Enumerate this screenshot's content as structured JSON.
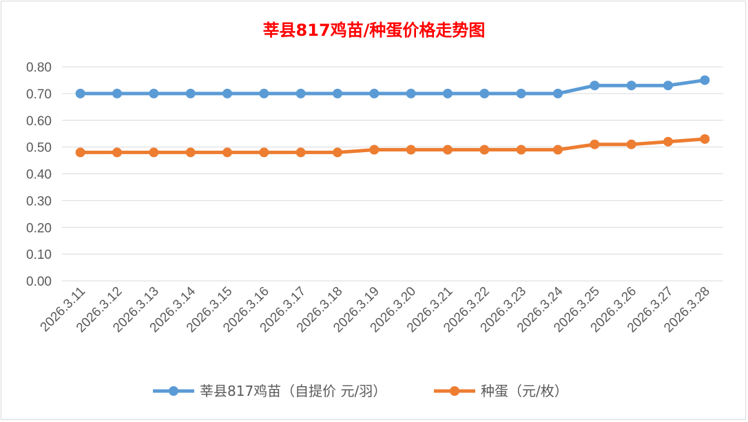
{
  "chart_data": {
    "type": "line",
    "title": "莘县817鸡苗/种蛋价格走势图",
    "xlabel": "",
    "ylabel": "",
    "ylim": [
      0,
      0.8
    ],
    "yticks": [
      "0.00",
      "0.10",
      "0.20",
      "0.30",
      "0.40",
      "0.50",
      "0.60",
      "0.70",
      "0.80"
    ],
    "grid": true,
    "legend_position": "bottom",
    "categories": [
      "2026.3.11",
      "2026.3.12",
      "2026.3.13",
      "2026.3.14",
      "2026.3.15",
      "2026.3.16",
      "2026.3.17",
      "2026.3.18",
      "2026.3.19",
      "2026.3.20",
      "2026.3.21",
      "2026.3.22",
      "2026.3.23",
      "2026.3.24",
      "2026.3.25",
      "2026.3.26",
      "2026.3.27",
      "2026.3.28"
    ],
    "series": [
      {
        "name": "莘县817鸡苗（自提价 元/羽）",
        "color": "#5b9bd5",
        "values": [
          0.7,
          0.7,
          0.7,
          0.7,
          0.7,
          0.7,
          0.7,
          0.7,
          0.7,
          0.7,
          0.7,
          0.7,
          0.7,
          0.7,
          0.73,
          0.73,
          0.73,
          0.75
        ]
      },
      {
        "name": "种蛋（元/枚）",
        "color": "#ed7d31",
        "values": [
          0.48,
          0.48,
          0.48,
          0.48,
          0.48,
          0.48,
          0.48,
          0.48,
          0.49,
          0.49,
          0.49,
          0.49,
          0.49,
          0.49,
          0.51,
          0.51,
          0.52,
          0.53
        ]
      }
    ]
  }
}
